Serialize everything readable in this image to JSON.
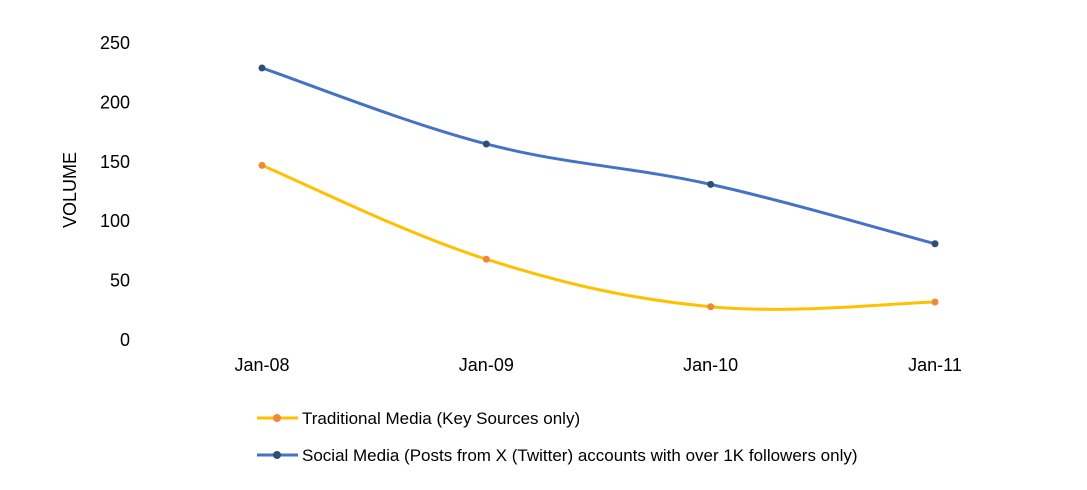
{
  "chart_data": {
    "type": "line",
    "title": "",
    "xlabel": "",
    "ylabel": "VOLUME",
    "categories": [
      "Jan-08",
      "Jan-09",
      "Jan-10",
      "Jan-11"
    ],
    "ylim": [
      0,
      250
    ],
    "yticks": [
      "0",
      "50",
      "100",
      "150",
      "200",
      "250"
    ],
    "grid": false,
    "legend_position": "bottom",
    "series": [
      {
        "name": "Traditional Media (Key Sources only)",
        "values": [
          147,
          68,
          28,
          32
        ],
        "line_color": "#FFC000",
        "marker_color": "#F0883C"
      },
      {
        "name": "Social Media (Posts from X (Twitter) accounts with over 1K followers only)",
        "values": [
          229,
          165,
          131,
          81
        ],
        "line_color": "#4472C4",
        "marker_color": "#2F4F70"
      }
    ]
  }
}
